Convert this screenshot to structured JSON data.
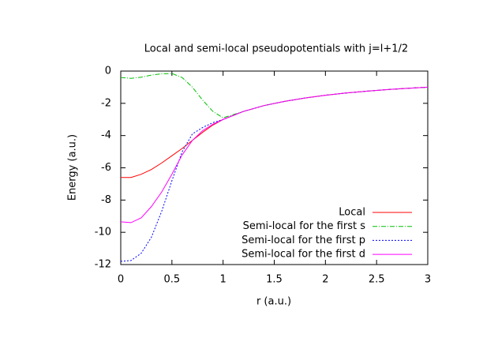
{
  "chart_data": {
    "type": "line",
    "title": "Local and semi-local pseudopotentials with j=l+1/2",
    "xlabel": "r (a.u.)",
    "ylabel": "Energy (a.u.)",
    "x": [
      0,
      0.1,
      0.2,
      0.3,
      0.4,
      0.5,
      0.6,
      0.7,
      0.8,
      0.9,
      1.0,
      1.2,
      1.4,
      1.6,
      1.8,
      2.0,
      2.2,
      2.4,
      2.6,
      2.8,
      3.0
    ],
    "series": [
      {
        "name": "Local",
        "color": "#ff0000",
        "values": [
          -6.6,
          -6.6,
          -6.4,
          -6.1,
          -5.7,
          -5.25,
          -4.8,
          -4.3,
          -3.8,
          -3.35,
          -3.0,
          -2.5,
          -2.14,
          -1.88,
          -1.67,
          -1.5,
          -1.36,
          -1.25,
          -1.15,
          -1.07,
          -1.0
        ]
      },
      {
        "name": "Semi-local for the first s",
        "color": "#00c000",
        "values": [
          -0.4,
          -0.45,
          -0.38,
          -0.25,
          -0.17,
          -0.15,
          -0.4,
          -1.0,
          -1.8,
          -2.5,
          -2.9,
          -2.5,
          -2.14,
          -1.88,
          -1.67,
          -1.5,
          -1.36,
          -1.25,
          -1.15,
          -1.07,
          -1.0
        ]
      },
      {
        "name": "Semi-local for the first p",
        "color": "#0000ff",
        "values": [
          -11.8,
          -11.75,
          -11.3,
          -10.3,
          -8.7,
          -6.8,
          -5.0,
          -3.9,
          -3.5,
          -3.2,
          -3.0,
          -2.5,
          -2.14,
          -1.88,
          -1.67,
          -1.5,
          -1.36,
          -1.25,
          -1.15,
          -1.07,
          -1.0
        ]
      },
      {
        "name": "Semi-local for the first d",
        "color": "#ff00ff",
        "values": [
          -9.35,
          -9.4,
          -9.1,
          -8.4,
          -7.5,
          -6.4,
          -5.2,
          -4.3,
          -3.7,
          -3.3,
          -3.0,
          -2.5,
          -2.14,
          -1.88,
          -1.67,
          -1.5,
          -1.36,
          -1.25,
          -1.15,
          -1.07,
          -1.0
        ]
      }
    ],
    "xlim": [
      0,
      3
    ],
    "xticks": [
      0,
      0.5,
      1,
      1.5,
      2,
      2.5,
      3
    ],
    "ylim": [
      -12,
      0
    ],
    "yticks": [
      0,
      -2,
      -4,
      -6,
      -8,
      -10,
      -12
    ],
    "legend": "lower right",
    "grid": false
  }
}
